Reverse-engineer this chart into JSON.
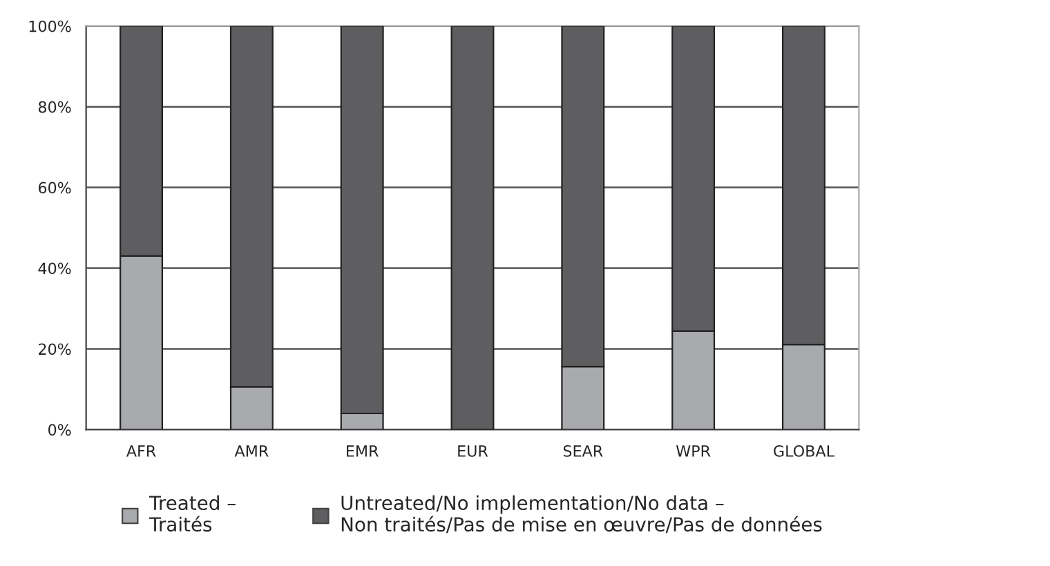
{
  "chart_data": {
    "type": "bar",
    "stacked": true,
    "categories": [
      "AFR",
      "AMR",
      "EMR",
      "EUR",
      "SEAR",
      "WPR",
      "GLOBAL"
    ],
    "series": [
      {
        "name": "Treated –\nTraités",
        "color": "#a9aaad",
        "values": [
          43,
          10.6,
          4,
          0,
          15.6,
          24.4,
          21.1
        ]
      },
      {
        "name": "Untreated/No implementation/No data –\nNon traités/Pas de mise en œuvre/Pas de données",
        "color": "#5e5e60",
        "values": [
          57,
          89.4,
          96,
          100,
          84.4,
          75.6,
          78.9
        ]
      }
    ],
    "ylim": [
      0,
      100
    ],
    "yticks": [
      {
        "value": 0,
        "label": "0%"
      },
      {
        "value": 20,
        "label": "20%"
      },
      {
        "value": 40,
        "label": "40%"
      },
      {
        "value": 60,
        "label": "60%"
      },
      {
        "value": 80,
        "label": "80%"
      },
      {
        "value": 100,
        "label": "100%"
      }
    ],
    "grid": "y",
    "legend": "bottom"
  }
}
